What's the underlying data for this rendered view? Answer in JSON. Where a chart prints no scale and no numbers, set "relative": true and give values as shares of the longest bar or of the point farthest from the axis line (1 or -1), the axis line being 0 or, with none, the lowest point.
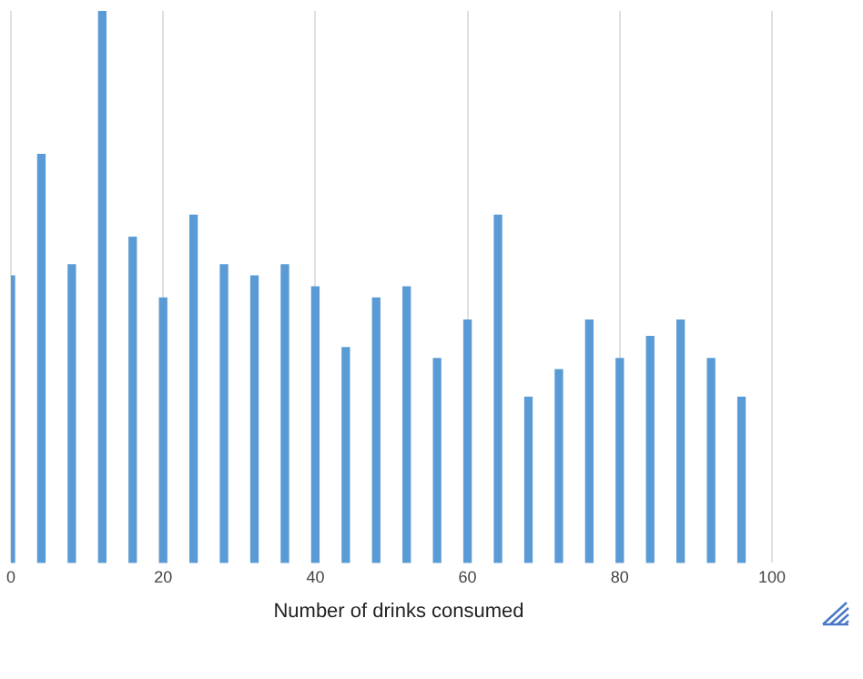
{
  "chart_data": {
    "type": "bar",
    "relative": true,
    "xlabel": "Number of drinks consumed",
    "x": [
      0,
      4,
      8,
      12,
      16,
      20,
      24,
      28,
      32,
      36,
      40,
      44,
      48,
      52,
      56,
      60,
      64,
      68,
      72,
      76,
      80,
      84,
      88,
      92,
      96
    ],
    "values": [
      0.52,
      0.74,
      0.54,
      1,
      0.59,
      0.48,
      0.63,
      0.54,
      0.52,
      0.54,
      0.5,
      0.39,
      0.48,
      0.5,
      0.37,
      0.44,
      0.63,
      0.3,
      0.35,
      0.44,
      0.37,
      0.41,
      0.44,
      0.37,
      0.3
    ],
    "color": "#5b9bd5",
    "xlim": [
      0,
      100
    ],
    "xticks": [
      0,
      20,
      40,
      60,
      80,
      100
    ],
    "grid": "x",
    "legend": false
  }
}
